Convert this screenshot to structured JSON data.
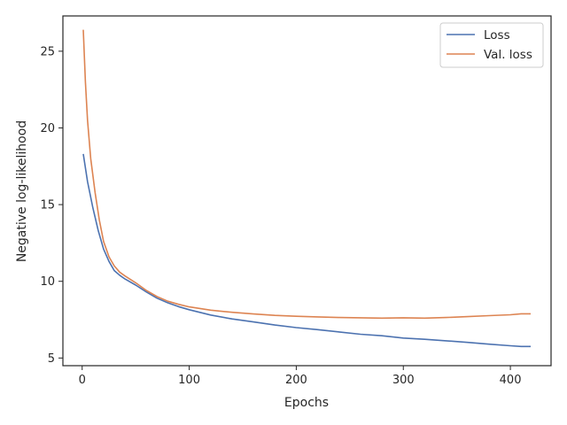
{
  "chart_data": {
    "type": "line",
    "title": "",
    "xlabel": "Epochs",
    "ylabel": "Negative log-likelihood",
    "xlim": [
      -18,
      438
    ],
    "ylim": [
      4.5,
      27.3
    ],
    "xticks": [
      0,
      100,
      200,
      300,
      400
    ],
    "yticks": [
      5,
      10,
      15,
      20,
      25
    ],
    "grid": false,
    "legend": {
      "position": "upper right"
    },
    "series": [
      {
        "name": "Loss",
        "color": "#4c72b0",
        "points": [
          [
            1,
            18.3
          ],
          [
            5,
            16.5
          ],
          [
            10,
            14.8
          ],
          [
            15,
            13.3
          ],
          [
            20,
            12.1
          ],
          [
            25,
            11.3
          ],
          [
            30,
            10.7
          ],
          [
            35,
            10.4
          ],
          [
            40,
            10.15
          ],
          [
            50,
            9.75
          ],
          [
            60,
            9.3
          ],
          [
            70,
            8.9
          ],
          [
            80,
            8.6
          ],
          [
            90,
            8.35
          ],
          [
            100,
            8.15
          ],
          [
            120,
            7.8
          ],
          [
            140,
            7.55
          ],
          [
            160,
            7.35
          ],
          [
            180,
            7.15
          ],
          [
            200,
            6.98
          ],
          [
            220,
            6.85
          ],
          [
            240,
            6.7
          ],
          [
            260,
            6.55
          ],
          [
            280,
            6.45
          ],
          [
            300,
            6.3
          ],
          [
            320,
            6.22
          ],
          [
            340,
            6.12
          ],
          [
            360,
            6.02
          ],
          [
            380,
            5.9
          ],
          [
            400,
            5.8
          ],
          [
            410,
            5.75
          ],
          [
            419,
            5.75
          ]
        ]
      },
      {
        "name": "Val. loss",
        "color": "#dd8452",
        "points": [
          [
            1,
            26.4
          ],
          [
            3,
            23.0
          ],
          [
            5,
            20.5
          ],
          [
            8,
            18.0
          ],
          [
            12,
            15.8
          ],
          [
            16,
            14.0
          ],
          [
            20,
            12.6
          ],
          [
            25,
            11.6
          ],
          [
            30,
            11.0
          ],
          [
            35,
            10.6
          ],
          [
            40,
            10.35
          ],
          [
            50,
            9.9
          ],
          [
            60,
            9.4
          ],
          [
            70,
            9.0
          ],
          [
            80,
            8.7
          ],
          [
            90,
            8.5
          ],
          [
            100,
            8.33
          ],
          [
            120,
            8.12
          ],
          [
            140,
            7.98
          ],
          [
            160,
            7.87
          ],
          [
            180,
            7.78
          ],
          [
            200,
            7.72
          ],
          [
            220,
            7.68
          ],
          [
            240,
            7.64
          ],
          [
            260,
            7.62
          ],
          [
            280,
            7.6
          ],
          [
            300,
            7.62
          ],
          [
            320,
            7.6
          ],
          [
            340,
            7.64
          ],
          [
            360,
            7.7
          ],
          [
            380,
            7.76
          ],
          [
            400,
            7.82
          ],
          [
            410,
            7.88
          ],
          [
            419,
            7.88
          ]
        ]
      }
    ]
  }
}
